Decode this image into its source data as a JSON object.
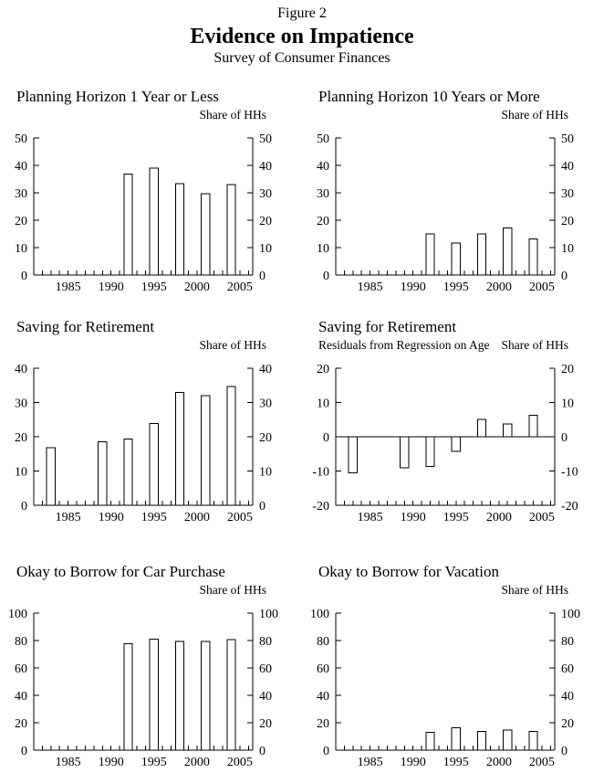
{
  "header": {
    "figure_label": "Figure 2",
    "title": "Evidence on Impatience",
    "subtitle": "Survey of Consumer Finances"
  },
  "chart_data": [
    {
      "type": "bar",
      "title": "Planning Horizon 1 Year or Less",
      "units_label": "Share of HHs",
      "x": [
        1992,
        1995,
        1998,
        2001,
        2004
      ],
      "values": [
        36.8,
        39.0,
        33.3,
        29.6,
        33.0
      ],
      "xlim": [
        1981,
        2006.5
      ],
      "xticks": [
        1985,
        1990,
        1995,
        2000,
        2005
      ],
      "ylim": [
        0,
        50
      ],
      "yticks": [
        0,
        10,
        20,
        30,
        40,
        50
      ],
      "grid": false,
      "bar_fill": "#ffffff",
      "line_color": "#000000"
    },
    {
      "type": "bar",
      "title": "Planning Horizon 10 Years or More",
      "units_label": "Share of HHs",
      "x": [
        1992,
        1995,
        1998,
        2001,
        2004
      ],
      "values": [
        15.0,
        11.6,
        15.0,
        17.2,
        13.2
      ],
      "xlim": [
        1981,
        2006.5
      ],
      "xticks": [
        1985,
        1990,
        1995,
        2000,
        2005
      ],
      "ylim": [
        0,
        50
      ],
      "yticks": [
        0,
        10,
        20,
        30,
        40,
        50
      ],
      "grid": false,
      "bar_fill": "#ffffff",
      "line_color": "#000000"
    },
    {
      "type": "bar",
      "title": "Saving for Retirement",
      "units_label": "Share of HHs",
      "x": [
        1983,
        1989,
        1992,
        1995,
        1998,
        2001,
        2004
      ],
      "values": [
        16.8,
        18.6,
        19.3,
        23.9,
        32.9,
        32.0,
        34.7
      ],
      "xlim": [
        1981,
        2006.5
      ],
      "xticks": [
        1985,
        1990,
        1995,
        2000,
        2005
      ],
      "ylim": [
        0,
        40
      ],
      "yticks": [
        0,
        10,
        20,
        30,
        40
      ],
      "grid": false,
      "bar_fill": "#ffffff",
      "line_color": "#000000"
    },
    {
      "type": "bar",
      "title": "Saving for Retirement",
      "subtitle": "Residuals from Regression on Age",
      "units_label": "Share of HHs",
      "x": [
        1983,
        1989,
        1992,
        1995,
        1998,
        2001,
        2004
      ],
      "values": [
        -10.5,
        -9.0,
        -8.6,
        -4.2,
        5.1,
        3.7,
        6.3
      ],
      "xlim": [
        1981,
        2006.5
      ],
      "xticks": [
        1985,
        1990,
        1995,
        2000,
        2005
      ],
      "ylim": [
        -20,
        20
      ],
      "yticks": [
        -20,
        -10,
        0,
        10,
        20
      ],
      "zero_line": true,
      "grid": false,
      "bar_fill": "#ffffff",
      "line_color": "#000000"
    },
    {
      "type": "bar",
      "title": "Okay to Borrow for Car Purchase",
      "units_label": "Share of HHs",
      "x": [
        1992,
        1995,
        1998,
        2001,
        2004
      ],
      "values": [
        77.8,
        80.9,
        79.3,
        79.2,
        80.7
      ],
      "xlim": [
        1981,
        2006.5
      ],
      "xticks": [
        1985,
        1990,
        1995,
        2000,
        2005
      ],
      "ylim": [
        0,
        100
      ],
      "yticks": [
        0,
        20,
        40,
        60,
        80,
        100
      ],
      "grid": false,
      "bar_fill": "#ffffff",
      "line_color": "#000000"
    },
    {
      "type": "bar",
      "title": "Okay to Borrow for Vacation",
      "units_label": "Share of HHs",
      "x": [
        1992,
        1995,
        1998,
        2001,
        2004
      ],
      "values": [
        13.0,
        16.2,
        13.6,
        14.6,
        13.6
      ],
      "xlim": [
        1981,
        2006.5
      ],
      "xticks": [
        1985,
        1990,
        1995,
        2000,
        2005
      ],
      "ylim": [
        0,
        100
      ],
      "yticks": [
        0,
        20,
        40,
        60,
        80,
        100
      ],
      "grid": false,
      "bar_fill": "#ffffff",
      "line_color": "#000000"
    }
  ]
}
